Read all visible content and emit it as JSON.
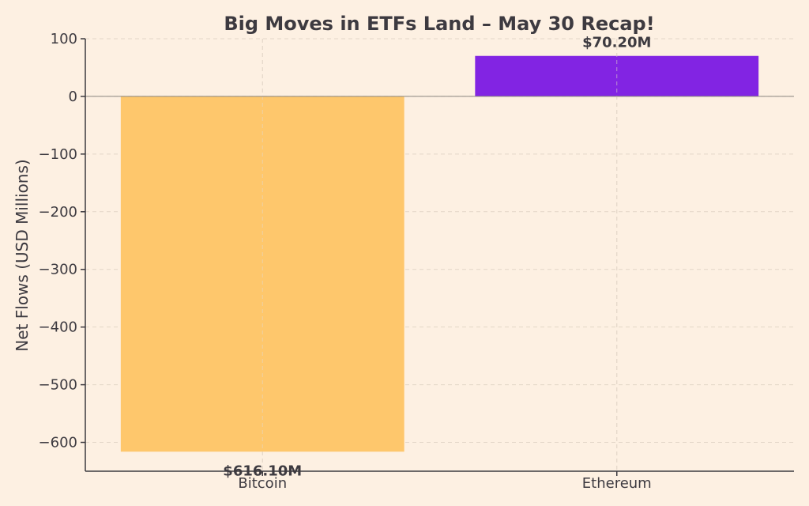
{
  "colors": {
    "background": "#fdf0e2",
    "bitcoin": "#fec76c",
    "ethereum": "#8224e3",
    "text": "#3d3a40"
  },
  "chart_data": {
    "type": "bar",
    "title": "Big Moves in ETFs Land – May 30 Recap!",
    "xlabel": "",
    "ylabel": "Net Flows (USD Millions)",
    "categories": [
      "Bitcoin",
      "Ethereum"
    ],
    "values": [
      -616.1,
      70.2
    ],
    "data_labels": [
      "$616.10M",
      "$70.20M"
    ],
    "bar_colors": [
      "#fec76c",
      "#8224e3"
    ],
    "ylim": [
      -650,
      100
    ],
    "yticks": [
      100,
      0,
      -100,
      -200,
      -300,
      -400,
      -500,
      -600
    ],
    "ytick_labels": [
      "100",
      "0",
      "−100",
      "−200",
      "−300",
      "−400",
      "−500",
      "−600"
    ],
    "grid": true,
    "legend": "none"
  }
}
